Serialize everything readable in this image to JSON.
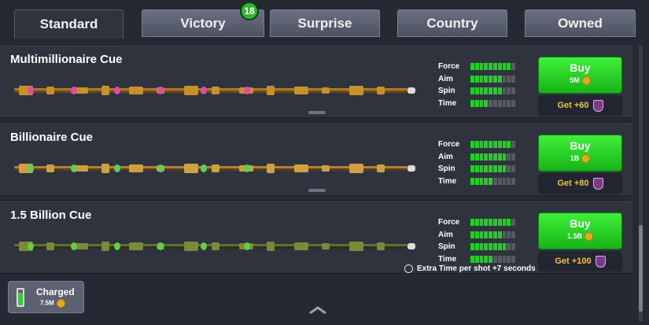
{
  "tabs": [
    {
      "label": "Standard",
      "active": true
    },
    {
      "label": "Victory",
      "active": false,
      "badge": 18
    },
    {
      "label": "Surprise",
      "active": false
    },
    {
      "label": "Country",
      "active": false
    },
    {
      "label": "Owned",
      "active": false
    }
  ],
  "cues": [
    {
      "name": "Multimillionaire Cue",
      "stats": [
        {
          "label": "Force",
          "value": 9
        },
        {
          "label": "Aim",
          "value": 7
        },
        {
          "label": "Spin",
          "value": 7
        },
        {
          "label": "Time",
          "value": 4
        }
      ],
      "buy": "Buy",
      "price": "5M",
      "reward": "Get +60"
    },
    {
      "name": "Billionaire Cue",
      "stats": [
        {
          "label": "Force",
          "value": 9
        },
        {
          "label": "Aim",
          "value": 8
        },
        {
          "label": "Spin",
          "value": 8
        },
        {
          "label": "Time",
          "value": 5
        }
      ],
      "buy": "Buy",
      "price": "1B",
      "reward": "Get +80"
    },
    {
      "name": "1.5 Billion Cue",
      "stats": [
        {
          "label": "Force",
          "value": 9
        },
        {
          "label": "Aim",
          "value": 7
        },
        {
          "label": "Spin",
          "value": 8
        },
        {
          "label": "Time",
          "value": 5
        }
      ],
      "buy": "Buy",
      "price": "1.5B",
      "reward": "Get +100",
      "note": "Extra Time per shot +7 seconds"
    }
  ],
  "charged": {
    "label": "Charged",
    "amount": "7.5M"
  }
}
